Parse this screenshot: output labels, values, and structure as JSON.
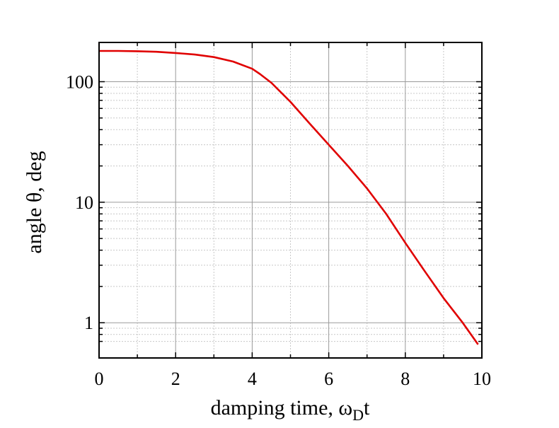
{
  "chart_data": {
    "type": "line",
    "title": "",
    "xlabel": "damping time, ωDt",
    "xlabel_parts": {
      "main": "damping time, ω",
      "sub": "D",
      "tail": "t"
    },
    "ylabel": "angle θ, deg",
    "xlim": [
      0,
      10
    ],
    "ylim": [
      0.6,
      180
    ],
    "y_scale": "log",
    "grid": true,
    "x_ticks": [
      {
        "value": 0,
        "label": "0"
      },
      {
        "value": 2,
        "label": "2"
      },
      {
        "value": 4,
        "label": "4"
      },
      {
        "value": 6,
        "label": "6"
      },
      {
        "value": 8,
        "label": "8"
      },
      {
        "value": 10,
        "label": "10"
      }
    ],
    "y_ticks": [
      {
        "value": 1,
        "label": "1"
      },
      {
        "value": 10,
        "label": "10"
      },
      {
        "value": 100,
        "label": "100"
      }
    ],
    "series": [
      {
        "color": "#e00000",
        "x": [
          0,
          0.5,
          1.0,
          1.5,
          2.0,
          2.5,
          3.0,
          3.5,
          4.0,
          4.2,
          4.5,
          5.0,
          5.5,
          6.0,
          6.5,
          7.0,
          7.5,
          8.0,
          8.5,
          9.0,
          9.5,
          9.9
        ],
        "y": [
          180,
          180,
          179,
          177,
          173,
          168,
          160,
          147,
          128,
          116,
          98,
          68,
          45,
          30,
          20,
          13,
          8,
          4.6,
          2.7,
          1.6,
          1.0,
          0.66
        ]
      }
    ]
  }
}
